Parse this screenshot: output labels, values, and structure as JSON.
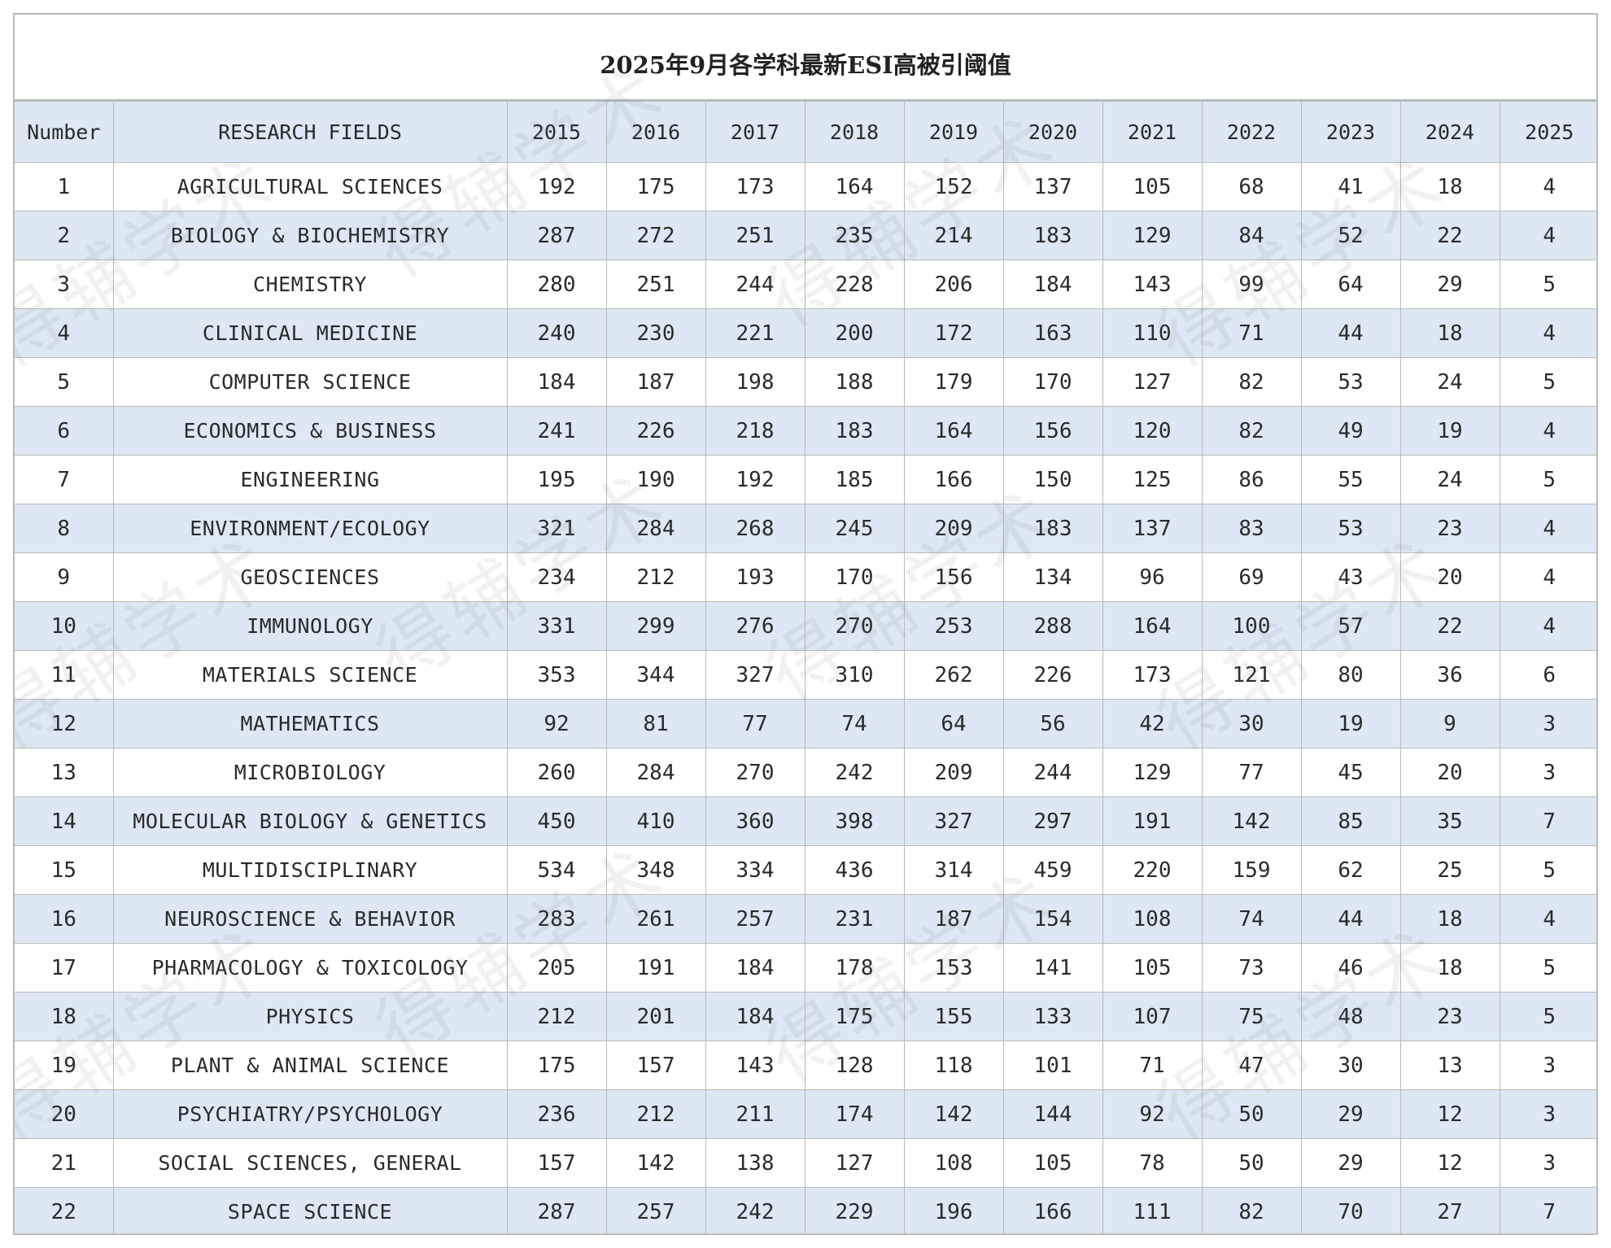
{
  "title": "2025年9月各学科最新ESI高被引阈值",
  "watermark": "得辅学术",
  "colors": {
    "header_bg": "#dde8f4",
    "stripe_bg": "#dde8f4",
    "grid": "#b9b9b9"
  },
  "table": {
    "headers": [
      "Number",
      "RESEARCH FIELDS",
      "2015",
      "2016",
      "2017",
      "2018",
      "2019",
      "2020",
      "2021",
      "2022",
      "2023",
      "2024",
      "2025"
    ],
    "rows": [
      [
        "1",
        "AGRICULTURAL SCIENCES",
        "192",
        "175",
        "173",
        "164",
        "152",
        "137",
        "105",
        "68",
        "41",
        "18",
        "4"
      ],
      [
        "2",
        "BIOLOGY & BIOCHEMISTRY",
        "287",
        "272",
        "251",
        "235",
        "214",
        "183",
        "129",
        "84",
        "52",
        "22",
        "4"
      ],
      [
        "3",
        "CHEMISTRY",
        "280",
        "251",
        "244",
        "228",
        "206",
        "184",
        "143",
        "99",
        "64",
        "29",
        "5"
      ],
      [
        "4",
        "CLINICAL MEDICINE",
        "240",
        "230",
        "221",
        "200",
        "172",
        "163",
        "110",
        "71",
        "44",
        "18",
        "4"
      ],
      [
        "5",
        "COMPUTER SCIENCE",
        "184",
        "187",
        "198",
        "188",
        "179",
        "170",
        "127",
        "82",
        "53",
        "24",
        "5"
      ],
      [
        "6",
        "ECONOMICS & BUSINESS",
        "241",
        "226",
        "218",
        "183",
        "164",
        "156",
        "120",
        "82",
        "49",
        "19",
        "4"
      ],
      [
        "7",
        "ENGINEERING",
        "195",
        "190",
        "192",
        "185",
        "166",
        "150",
        "125",
        "86",
        "55",
        "24",
        "5"
      ],
      [
        "8",
        "ENVIRONMENT/ECOLOGY",
        "321",
        "284",
        "268",
        "245",
        "209",
        "183",
        "137",
        "83",
        "53",
        "23",
        "4"
      ],
      [
        "9",
        "GEOSCIENCES",
        "234",
        "212",
        "193",
        "170",
        "156",
        "134",
        "96",
        "69",
        "43",
        "20",
        "4"
      ],
      [
        "10",
        "IMMUNOLOGY",
        "331",
        "299",
        "276",
        "270",
        "253",
        "288",
        "164",
        "100",
        "57",
        "22",
        "4"
      ],
      [
        "11",
        "MATERIALS SCIENCE",
        "353",
        "344",
        "327",
        "310",
        "262",
        "226",
        "173",
        "121",
        "80",
        "36",
        "6"
      ],
      [
        "12",
        "MATHEMATICS",
        "92",
        "81",
        "77",
        "74",
        "64",
        "56",
        "42",
        "30",
        "19",
        "9",
        "3"
      ],
      [
        "13",
        "MICROBIOLOGY",
        "260",
        "284",
        "270",
        "242",
        "209",
        "244",
        "129",
        "77",
        "45",
        "20",
        "3"
      ],
      [
        "14",
        "MOLECULAR BIOLOGY & GENETICS",
        "450",
        "410",
        "360",
        "398",
        "327",
        "297",
        "191",
        "142",
        "85",
        "35",
        "7"
      ],
      [
        "15",
        "MULTIDISCIPLINARY",
        "534",
        "348",
        "334",
        "436",
        "314",
        "459",
        "220",
        "159",
        "62",
        "25",
        "5"
      ],
      [
        "16",
        "NEUROSCIENCE & BEHAVIOR",
        "283",
        "261",
        "257",
        "231",
        "187",
        "154",
        "108",
        "74",
        "44",
        "18",
        "4"
      ],
      [
        "17",
        "PHARMACOLOGY & TOXICOLOGY",
        "205",
        "191",
        "184",
        "178",
        "153",
        "141",
        "105",
        "73",
        "46",
        "18",
        "5"
      ],
      [
        "18",
        "PHYSICS",
        "212",
        "201",
        "184",
        "175",
        "155",
        "133",
        "107",
        "75",
        "48",
        "23",
        "5"
      ],
      [
        "19",
        "PLANT & ANIMAL SCIENCE",
        "175",
        "157",
        "143",
        "128",
        "118",
        "101",
        "71",
        "47",
        "30",
        "13",
        "3"
      ],
      [
        "20",
        "PSYCHIATRY/PSYCHOLOGY",
        "236",
        "212",
        "211",
        "174",
        "142",
        "144",
        "92",
        "50",
        "29",
        "12",
        "3"
      ],
      [
        "21",
        "SOCIAL SCIENCES, GENERAL",
        "157",
        "142",
        "138",
        "127",
        "108",
        "105",
        "78",
        "50",
        "29",
        "12",
        "3"
      ],
      [
        "22",
        "SPACE SCIENCE",
        "287",
        "257",
        "242",
        "229",
        "196",
        "166",
        "111",
        "82",
        "70",
        "27",
        "7"
      ]
    ]
  }
}
